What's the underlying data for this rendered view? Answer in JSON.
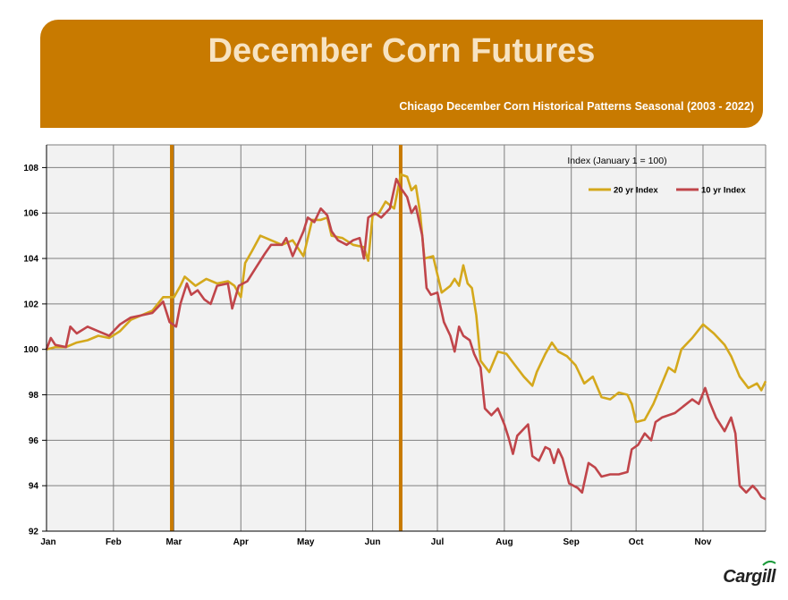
{
  "header": {
    "title": "December Corn Futures",
    "subtitle": "Chicago December Corn Historical Patterns Seasonal (2003 - 2022)"
  },
  "logo": {
    "text": "Cargill"
  },
  "colors": {
    "banner": "#c87a00",
    "series_20yr": "#d4a81c",
    "series_10yr": "#c0454a",
    "marker_lines": "#c87a00",
    "plot_background": "#f2f2f2",
    "grid": "#7f7f7f"
  },
  "chart_data": {
    "type": "line",
    "title": "Chicago December Corn Historical Patterns Seasonal (2003 - 2022)",
    "annotation": "Index (January 1 = 100)",
    "x_tick_labels": [
      "Jan",
      "Feb",
      "Mar",
      "Apr",
      "May",
      "Jun",
      "Jul",
      "Aug",
      "Sep",
      "Oct",
      "Nov"
    ],
    "y_tick_labels": [
      "92",
      "94",
      "96",
      "98",
      "100",
      "102",
      "104",
      "106",
      "108"
    ],
    "ylim": [
      92,
      109
    ],
    "xlim": [
      "Jan 1",
      "Nov 30"
    ],
    "x_unit": "day of year",
    "grid": true,
    "legend": "top-right",
    "vertical_markers": [
      "Feb 28",
      "Jun 14"
    ],
    "series": [
      {
        "name": "20 yr Index",
        "points": [
          [
            1,
            100.0
          ],
          [
            5,
            100.1
          ],
          [
            10,
            100.1
          ],
          [
            15,
            100.3
          ],
          [
            20,
            100.4
          ],
          [
            25,
            100.6
          ],
          [
            30,
            100.5
          ],
          [
            35,
            100.8
          ],
          [
            40,
            101.3
          ],
          [
            45,
            101.5
          ],
          [
            50,
            101.7
          ],
          [
            55,
            102.3
          ],
          [
            60,
            102.3
          ],
          [
            63,
            102.8
          ],
          [
            65,
            103.2
          ],
          [
            70,
            102.8
          ],
          [
            75,
            103.1
          ],
          [
            80,
            102.9
          ],
          [
            85,
            103.0
          ],
          [
            88,
            102.8
          ],
          [
            91,
            102.3
          ],
          [
            93,
            103.8
          ],
          [
            96,
            104.3
          ],
          [
            100,
            105.0
          ],
          [
            105,
            104.8
          ],
          [
            110,
            104.6
          ],
          [
            115,
            104.8
          ],
          [
            120,
            104.1
          ],
          [
            124,
            105.7
          ],
          [
            128,
            105.7
          ],
          [
            131,
            105.8
          ],
          [
            133,
            105.0
          ],
          [
            138,
            104.9
          ],
          [
            143,
            104.6
          ],
          [
            148,
            104.5
          ],
          [
            150,
            103.9
          ],
          [
            152,
            105.9
          ],
          [
            155,
            106.0
          ],
          [
            158,
            106.5
          ],
          [
            162,
            106.2
          ],
          [
            165,
            107.7
          ],
          [
            168,
            107.6
          ],
          [
            170,
            107.0
          ],
          [
            172,
            107.2
          ],
          [
            174,
            106.0
          ],
          [
            176,
            104.0
          ],
          [
            180,
            104.1
          ],
          [
            184,
            102.5
          ],
          [
            188,
            102.8
          ],
          [
            190,
            103.1
          ],
          [
            192,
            102.8
          ],
          [
            194,
            103.7
          ],
          [
            196,
            102.9
          ],
          [
            198,
            102.7
          ],
          [
            200,
            101.5
          ],
          [
            202,
            99.5
          ],
          [
            206,
            99.0
          ],
          [
            210,
            99.9
          ],
          [
            214,
            99.8
          ],
          [
            218,
            99.3
          ],
          [
            222,
            98.8
          ],
          [
            226,
            98.4
          ],
          [
            228,
            99.0
          ],
          [
            232,
            99.8
          ],
          [
            235,
            100.3
          ],
          [
            238,
            99.9
          ],
          [
            242,
            99.7
          ],
          [
            246,
            99.3
          ],
          [
            250,
            98.5
          ],
          [
            254,
            98.8
          ],
          [
            258,
            97.9
          ],
          [
            262,
            97.8
          ],
          [
            266,
            98.1
          ],
          [
            270,
            98.0
          ],
          [
            272,
            97.6
          ],
          [
            274,
            96.8
          ],
          [
            278,
            96.9
          ],
          [
            282,
            97.6
          ],
          [
            286,
            98.5
          ],
          [
            289,
            99.2
          ],
          [
            292,
            99.0
          ],
          [
            295,
            100.0
          ],
          [
            300,
            100.5
          ],
          [
            305,
            101.1
          ],
          [
            310,
            100.7
          ],
          [
            315,
            100.2
          ],
          [
            318,
            99.7
          ],
          [
            322,
            98.8
          ],
          [
            326,
            98.3
          ],
          [
            330,
            98.5
          ],
          [
            332,
            98.2
          ],
          [
            334,
            98.6
          ]
        ]
      },
      {
        "name": "10 yr Index",
        "points": [
          [
            1,
            100.0
          ],
          [
            3,
            100.5
          ],
          [
            5,
            100.2
          ],
          [
            10,
            100.1
          ],
          [
            12,
            101.0
          ],
          [
            15,
            100.7
          ],
          [
            20,
            101.0
          ],
          [
            25,
            100.8
          ],
          [
            30,
            100.6
          ],
          [
            35,
            101.1
          ],
          [
            40,
            101.4
          ],
          [
            45,
            101.5
          ],
          [
            50,
            101.6
          ],
          [
            55,
            102.1
          ],
          [
            58,
            101.2
          ],
          [
            61,
            101.0
          ],
          [
            63,
            102.0
          ],
          [
            66,
            102.9
          ],
          [
            68,
            102.4
          ],
          [
            71,
            102.6
          ],
          [
            74,
            102.2
          ],
          [
            77,
            102.0
          ],
          [
            80,
            102.8
          ],
          [
            85,
            102.9
          ],
          [
            87,
            101.8
          ],
          [
            90,
            102.8
          ],
          [
            94,
            103.0
          ],
          [
            98,
            103.6
          ],
          [
            102,
            104.2
          ],
          [
            105,
            104.6
          ],
          [
            110,
            104.6
          ],
          [
            112,
            104.9
          ],
          [
            115,
            104.1
          ],
          [
            120,
            105.2
          ],
          [
            122,
            105.8
          ],
          [
            125,
            105.6
          ],
          [
            128,
            106.2
          ],
          [
            131,
            105.9
          ],
          [
            133,
            105.2
          ],
          [
            136,
            104.8
          ],
          [
            140,
            104.6
          ],
          [
            143,
            104.8
          ],
          [
            146,
            104.9
          ],
          [
            148,
            104.0
          ],
          [
            150,
            105.8
          ],
          [
            153,
            106.0
          ],
          [
            156,
            105.8
          ],
          [
            160,
            106.2
          ],
          [
            163,
            107.5
          ],
          [
            165,
            107.1
          ],
          [
            168,
            106.7
          ],
          [
            170,
            106.0
          ],
          [
            172,
            106.3
          ],
          [
            175,
            105.0
          ],
          [
            177,
            102.7
          ],
          [
            179,
            102.4
          ],
          [
            182,
            102.5
          ],
          [
            185,
            101.2
          ],
          [
            188,
            100.6
          ],
          [
            190,
            99.9
          ],
          [
            192,
            101.0
          ],
          [
            194,
            100.6
          ],
          [
            197,
            100.4
          ],
          [
            199,
            99.8
          ],
          [
            202,
            99.2
          ],
          [
            204,
            97.4
          ],
          [
            207,
            97.1
          ],
          [
            210,
            97.4
          ],
          [
            213,
            96.7
          ],
          [
            215,
            96.1
          ],
          [
            217,
            95.4
          ],
          [
            219,
            96.2
          ],
          [
            222,
            96.5
          ],
          [
            224,
            96.7
          ],
          [
            226,
            95.3
          ],
          [
            229,
            95.1
          ],
          [
            232,
            95.7
          ],
          [
            234,
            95.6
          ],
          [
            236,
            95.0
          ],
          [
            238,
            95.6
          ],
          [
            240,
            95.2
          ],
          [
            243,
            94.1
          ],
          [
            247,
            93.9
          ],
          [
            249,
            93.7
          ],
          [
            252,
            95.0
          ],
          [
            255,
            94.8
          ],
          [
            258,
            94.4
          ],
          [
            262,
            94.5
          ],
          [
            266,
            94.5
          ],
          [
            270,
            94.6
          ],
          [
            272,
            95.6
          ],
          [
            275,
            95.8
          ],
          [
            278,
            96.3
          ],
          [
            281,
            96.0
          ],
          [
            283,
            96.8
          ],
          [
            286,
            97.0
          ],
          [
            289,
            97.1
          ],
          [
            292,
            97.2
          ],
          [
            296,
            97.5
          ],
          [
            300,
            97.8
          ],
          [
            303,
            97.6
          ],
          [
            306,
            98.3
          ],
          [
            308,
            97.7
          ],
          [
            311,
            97.0
          ],
          [
            315,
            96.4
          ],
          [
            318,
            97.0
          ],
          [
            320,
            96.3
          ],
          [
            322,
            94.0
          ],
          [
            325,
            93.7
          ],
          [
            328,
            94.0
          ],
          [
            330,
            93.8
          ],
          [
            332,
            93.5
          ],
          [
            334,
            93.4
          ]
        ]
      }
    ]
  }
}
